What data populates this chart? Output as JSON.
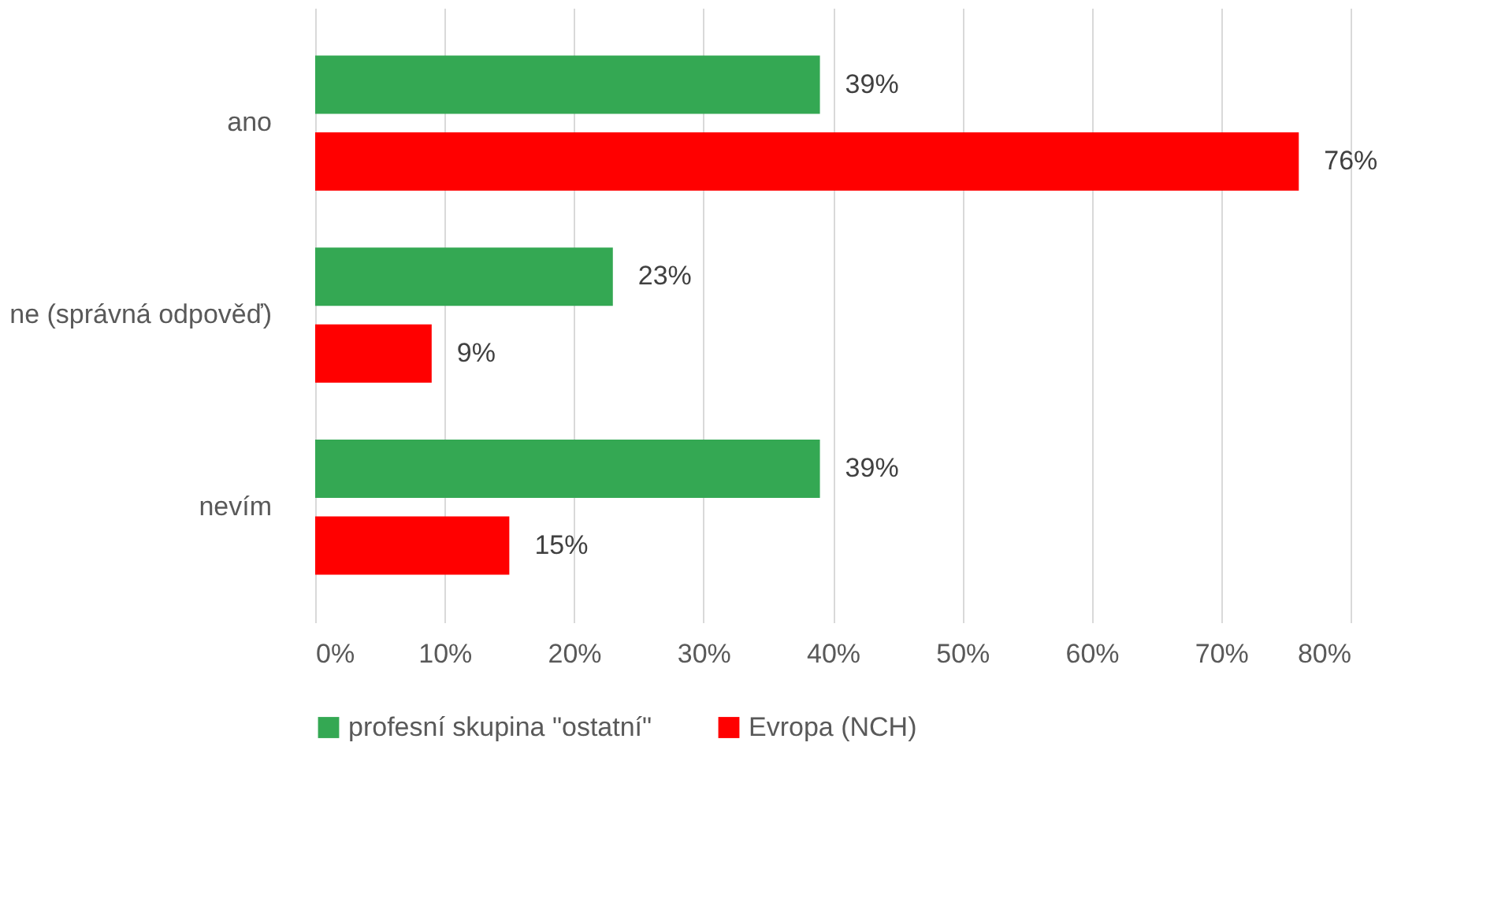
{
  "chart_data": {
    "type": "bar",
    "orientation": "horizontal",
    "categories": [
      "ano",
      "ne (správná odpověď)",
      "nevím"
    ],
    "series": [
      {
        "name": "profesní skupina \"ostatní\"",
        "color": "#34a853",
        "values": [
          39,
          23,
          39
        ],
        "value_labels": [
          "39%",
          "23%",
          "39%"
        ]
      },
      {
        "name": "Evropa (NCH)",
        "color": "#ff0000",
        "values": [
          76,
          9,
          15
        ],
        "value_labels": [
          "76%",
          "9%",
          "15%"
        ]
      }
    ],
    "xlim": [
      0,
      80
    ],
    "xticks": [
      {
        "value": 0,
        "label": "0%"
      },
      {
        "value": 10,
        "label": "10%"
      },
      {
        "value": 20,
        "label": "20%"
      },
      {
        "value": 30,
        "label": "30%"
      },
      {
        "value": 40,
        "label": "40%"
      },
      {
        "value": 50,
        "label": "50%"
      },
      {
        "value": 60,
        "label": "60%"
      },
      {
        "value": 70,
        "label": "70%"
      },
      {
        "value": 80,
        "label": "80%"
      }
    ],
    "grid": "x",
    "legend": "bottom"
  }
}
